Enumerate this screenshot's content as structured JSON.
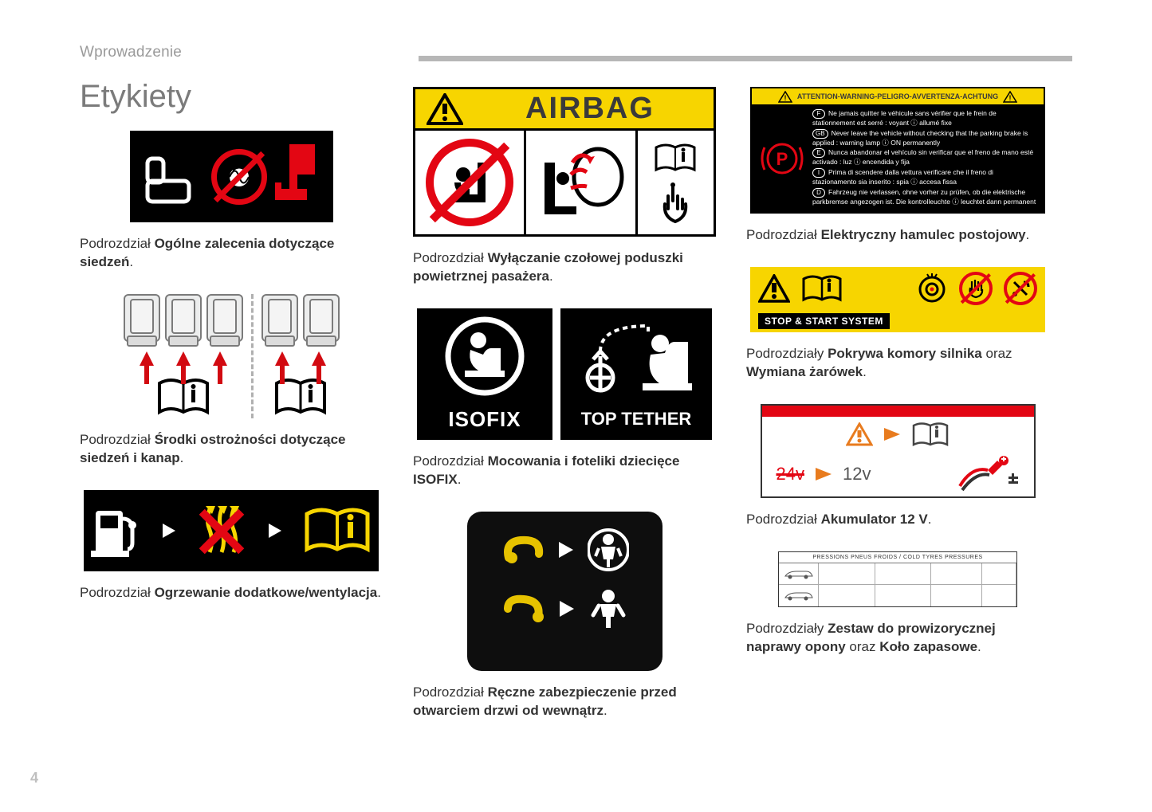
{
  "section_label": "Wprowadzenie",
  "title": "Etykiety",
  "page_number": "4",
  "colors": {
    "text": "#3a3a3a",
    "muted": "#9a9a9a",
    "title": "#7b7b7b",
    "rule": "#b7b7b7",
    "red": "#e30613",
    "yellow": "#f7d500",
    "black": "#000000",
    "orange": "#e87b1e"
  },
  "captions": {
    "seats_general_prefix": "Podrozdział ",
    "seats_general_bold": "Ogólne zalecenia dotyczące siedzeń",
    "seats_general_suffix": ".",
    "seats_precautions_prefix": "Podrozdział ",
    "seats_precautions_bold": "Środki ostrożności dotyczące siedzeń i kanap",
    "seats_precautions_suffix": ".",
    "heating_prefix": "Podrozdział ",
    "heating_bold": "Ogrzewanie dodatkowe/wentylacja",
    "heating_suffix": ".",
    "airbag_prefix": "Podrozdział ",
    "airbag_bold": "Wyłączanie czołowej poduszki powietrznej pasażera",
    "airbag_suffix": ".",
    "isofix_prefix": "Podrozdział ",
    "isofix_bold": "Mocowania i foteliki dziecięce ISOFIX",
    "isofix_suffix": ".",
    "childlock_prefix": "Podrozdział ",
    "childlock_bold": "Ręczne zabezpieczenie przed otwarciem drzwi od wewnątrz",
    "childlock_suffix": ".",
    "parking_prefix": "Podrozdział ",
    "parking_bold": "Elektryczny hamulec postojowy",
    "parking_suffix": ".",
    "engine_prefix": "Podrozdziały ",
    "engine_bold1": "Pokrywa komory silnika",
    "engine_mid": " oraz ",
    "engine_bold2": "Wymiana żarówek",
    "engine_suffix": ".",
    "battery_prefix": "Podrozdział ",
    "battery_bold": "Akumulator 12 V",
    "battery_suffix": ".",
    "tyre_prefix": "Podrozdziały ",
    "tyre_bold1": "Zestaw do prowizorycznej naprawy opony",
    "tyre_mid": " oraz ",
    "tyre_bold2": "Koło zapasowe",
    "tyre_suffix": "."
  },
  "labels": {
    "airbag_header": "AIRBAG",
    "isofix": "ISOFIX",
    "top_tether": "TOP TETHER",
    "stop_start": "STOP & START SYSTEM",
    "parking_header": "ATTENTION-WARNING-PELIGRO-AVVERTENZA-ACHTUNG",
    "parking_lines": [
      {
        "lang": "F",
        "text": "Ne jamais quitter le véhicule sans vérifier que le frein de stationnement est serré : voyant ⓘ allumé fixe"
      },
      {
        "lang": "GB",
        "text": "Never leave the vehicle without checking that the parking brake is applied : warning lamp ⓘ ON permanently"
      },
      {
        "lang": "E",
        "text": "Nunca abandonar el vehículo sin verificar que el freno de mano esté activado : luz ⓘ encendida y fija"
      },
      {
        "lang": "I",
        "text": "Prima di scendere dalla vettura verificare che il freno di stazionamento sia inserito : spia ⓘ accesa fissa"
      },
      {
        "lang": "D",
        "text": "Fahrzeug nie verlassen, ohne vorher zu prüfen, ob die elektrische parkbremse angezogen ist. Die kontrolleuchte ⓘ leuchtet dann permanent"
      }
    ],
    "battery_24v": "24v",
    "battery_12v": "12v",
    "tyre_header": "PRESSIONS PNEUS FROIDS / COLD TYRES PRESSURES"
  }
}
